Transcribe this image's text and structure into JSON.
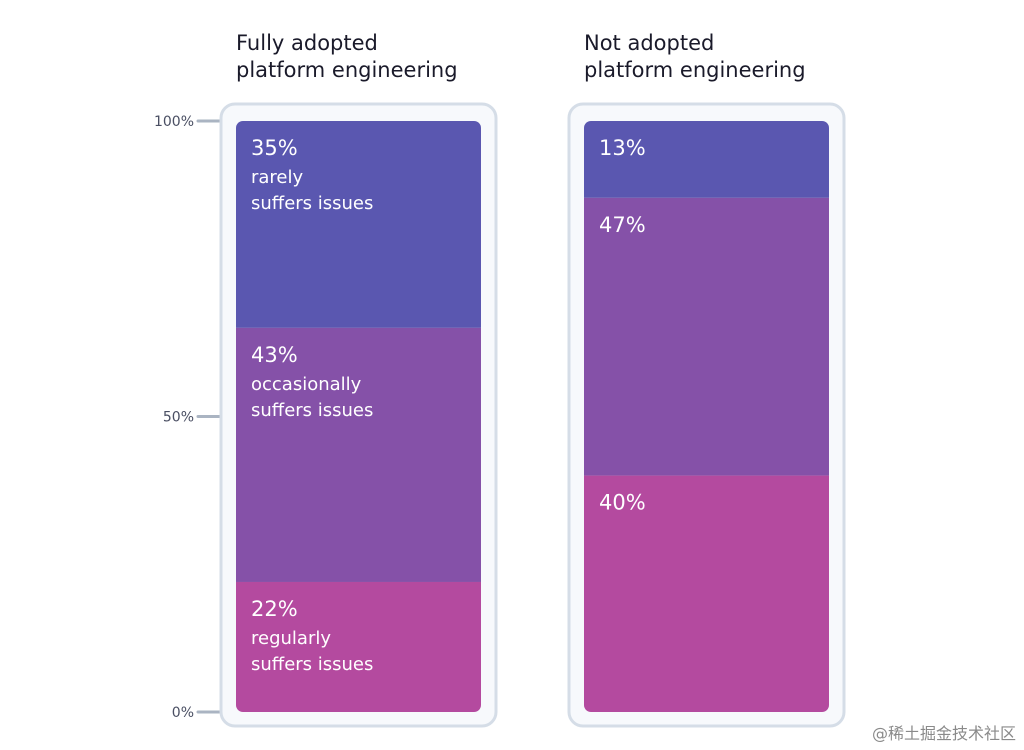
{
  "chart_data": {
    "type": "bar",
    "stacked": true,
    "categories": [
      "Fully adopted platform engineering",
      "Not adopted platform engineering"
    ],
    "category_titles": [
      [
        "Fully adopted",
        "platform engineering"
      ],
      [
        "Not adopted",
        "platform engineering"
      ]
    ],
    "series": [
      {
        "name": "rarely suffers issues",
        "values": [
          35,
          13
        ],
        "labels": [
          [
            "35%",
            "rarely",
            "suffers issues"
          ],
          [
            "13%"
          ]
        ],
        "color": "#5a57b0"
      },
      {
        "name": "occasionally suffers issues",
        "values": [
          43,
          47
        ],
        "labels": [
          [
            "43%",
            "occasionally",
            "suffers issues"
          ],
          [
            "47%"
          ]
        ],
        "color": "#8551a8"
      },
      {
        "name": "regularly suffers issues",
        "values": [
          22,
          40
        ],
        "labels": [
          [
            "22%",
            "regularly",
            "suffers issues"
          ],
          [
            "40%"
          ]
        ],
        "color": "#b44a9f"
      }
    ],
    "yticks": [
      {
        "value": 100,
        "label": "100%"
      },
      {
        "value": 50,
        "label": "50%"
      },
      {
        "value": 0,
        "label": "0%"
      }
    ],
    "ylim": [
      0,
      100
    ],
    "xlabel": "",
    "ylabel": "",
    "title": ""
  },
  "watermark": "@稀土掘金技术社区",
  "colors": {
    "frame_border": "#d5dde7",
    "frame_fill": "#f7f9fc",
    "tick_color": "#aab4c2"
  }
}
